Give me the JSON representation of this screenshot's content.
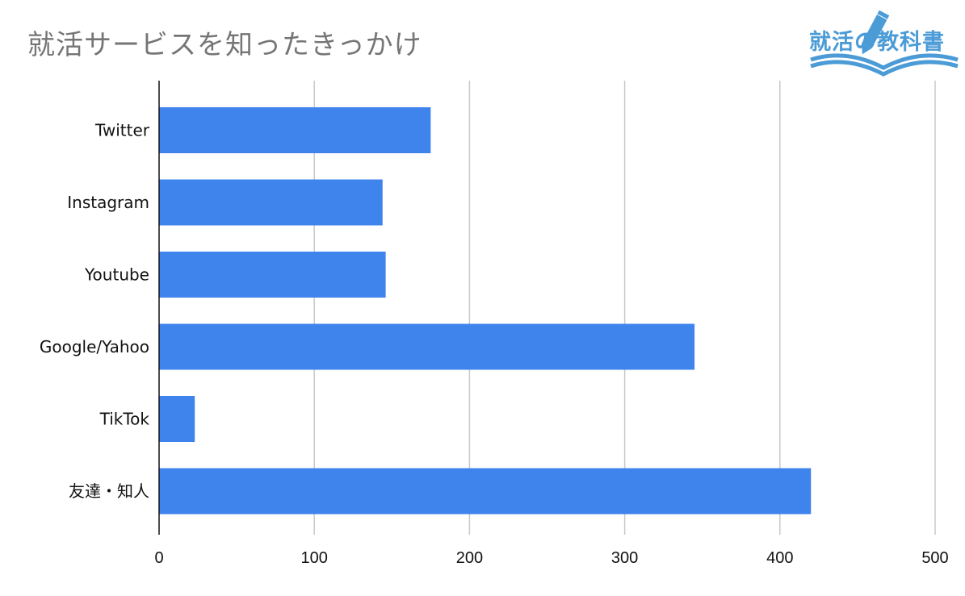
{
  "title": "就活サービスを知ったきっかけ",
  "logo": {
    "text": "就活の教科書",
    "icon": "pencil-book-icon",
    "color": "#4b9bd7"
  },
  "colors": {
    "bar": "#3f84ec",
    "grid": "#c8c8c8",
    "axis": "#111111",
    "title": "#757575"
  },
  "chart_data": {
    "type": "bar",
    "orientation": "horizontal",
    "title": "就活サービスを知ったきっかけ",
    "categories": [
      "Twitter",
      "Instagram",
      "Youtube",
      "Google/Yahoo",
      "TikTok",
      "友達・知人"
    ],
    "values": [
      175,
      144,
      146,
      345,
      23,
      420
    ],
    "xlabel": "",
    "ylabel": "",
    "xlim": [
      0,
      500
    ],
    "xticks": [
      0,
      100,
      200,
      300,
      400,
      500
    ],
    "grid": "vertical",
    "legend": "none"
  }
}
